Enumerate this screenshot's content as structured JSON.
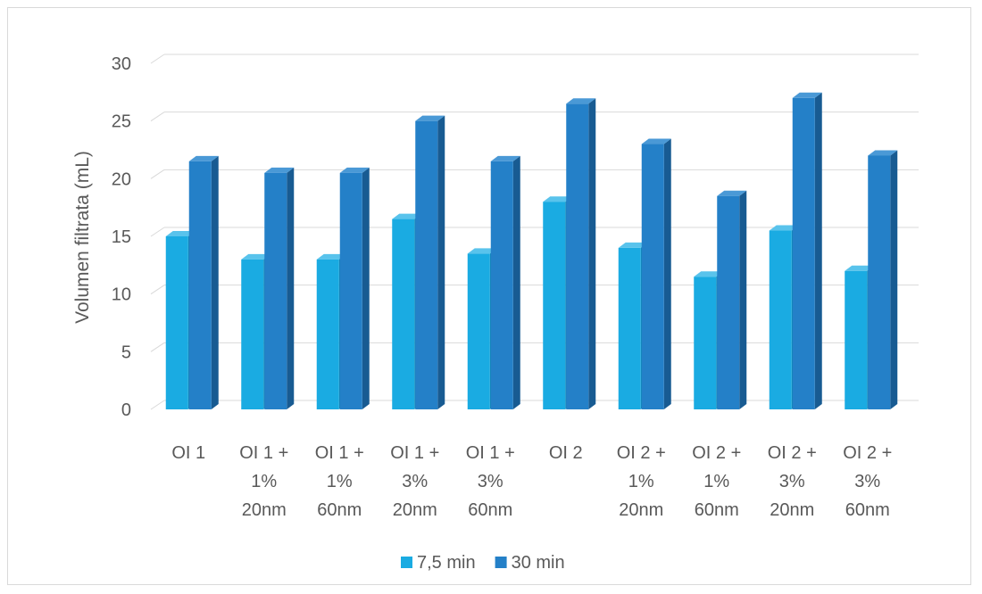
{
  "chart_data": {
    "type": "bar",
    "title": "",
    "xlabel": "",
    "ylabel": "Volumen filtrata (mL)",
    "ylim": [
      0,
      30
    ],
    "yticks": [
      "0",
      "5",
      "10",
      "15",
      "20",
      "25",
      "30"
    ],
    "grid": true,
    "legend_position": "bottom",
    "categories": [
      [
        "OI 1"
      ],
      [
        "OI 1 +",
        "1%",
        "20nm"
      ],
      [
        "OI 1 +",
        "1%",
        "60nm"
      ],
      [
        "OI 1 +",
        "3%",
        "20nm"
      ],
      [
        "OI 1 +",
        "3%",
        "60nm"
      ],
      [
        "OI 2"
      ],
      [
        "OI 2 +",
        "1%",
        "20nm"
      ],
      [
        "OI 2 +",
        "1%",
        "60nm"
      ],
      [
        "OI 2 +",
        "3%",
        "20nm"
      ],
      [
        "OI 2 +",
        "3%",
        "60nm"
      ]
    ],
    "series": [
      {
        "name": "7,5 min",
        "color": "#1aabe2",
        "side_color": "#0f86b8",
        "top_color": "#59c3ec",
        "values": [
          15,
          13,
          13,
          16.5,
          13.5,
          18,
          14,
          11.5,
          15.5,
          12
        ]
      },
      {
        "name": "30 min",
        "color": "#2480c8",
        "side_color": "#185b92",
        "top_color": "#4a99d6",
        "values": [
          21.5,
          20.5,
          20.5,
          25,
          21.5,
          26.5,
          23,
          18.5,
          27,
          22
        ]
      }
    ]
  }
}
